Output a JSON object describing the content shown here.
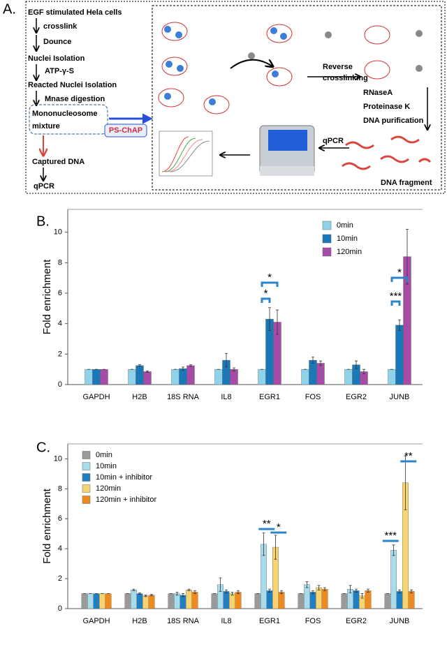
{
  "diagram": {
    "label": "A.",
    "steps": [
      "EGF stimulated Hela cells",
      "crosslink",
      "Dounce",
      "Nuclei Isolation",
      "ATP-γ-S",
      "Reacted Nuclei Isolation",
      "Mnase digestion"
    ],
    "mixture": [
      "Mononucleosome",
      "mixture"
    ],
    "captured": "Captured DNA",
    "qpcr_left": "qPCR",
    "method": "PS-ChAP",
    "reverse": [
      "Reverse",
      "crosslinking"
    ],
    "purification": [
      "RNaseA",
      "Proteinase K",
      "DNA purification"
    ],
    "qpcr_right": "qPCR",
    "fragment": "DNA fragment"
  },
  "chart_data": [
    {
      "type": "bar",
      "label": "B.",
      "ylabel": "Fold enrichment",
      "categories": [
        "GAPDH",
        "H2B",
        "18S RNA",
        "IL8",
        "EGR1",
        "FOS",
        "EGR2",
        "JUNB"
      ],
      "series": [
        {
          "name": "0min",
          "color": "#8fd3ea",
          "values": [
            1,
            1,
            1,
            1,
            1,
            1,
            1,
            1
          ],
          "errors": [
            0,
            0,
            0,
            0,
            0,
            0,
            0,
            0
          ]
        },
        {
          "name": "10min",
          "color": "#1a78b8",
          "values": [
            1,
            1.25,
            1.05,
            1.6,
            4.3,
            1.6,
            1.3,
            3.9
          ],
          "errors": [
            0,
            0.05,
            0.1,
            0.45,
            0.75,
            0.2,
            0.25,
            0.35
          ]
        },
        {
          "name": "120min",
          "color": "#a64ca6",
          "values": [
            1,
            0.85,
            1.25,
            1.0,
            4.1,
            1.4,
            0.85,
            8.4
          ],
          "errors": [
            0,
            0.05,
            0.05,
            0.1,
            0.8,
            0.15,
            0.15,
            1.8
          ]
        }
      ],
      "ylim": [
        0,
        11.5
      ],
      "yticks": [
        0,
        2,
        4,
        6,
        8,
        10
      ],
      "annotations": [
        "*",
        "*",
        "***",
        "*"
      ]
    },
    {
      "type": "bar",
      "label": "C.",
      "ylabel": "Fold enrichment",
      "categories": [
        "GAPDH",
        "H2B",
        "18S RNA",
        "IL8",
        "EGR1",
        "FOS",
        "EGR2",
        "JUNB"
      ],
      "series": [
        {
          "name": "0min",
          "color": "#9a9a9a",
          "values": [
            1,
            1,
            1,
            1,
            1,
            1,
            1,
            1
          ],
          "errors": [
            0,
            0,
            0,
            0,
            0,
            0,
            0,
            0
          ]
        },
        {
          "name": "10min",
          "color": "#a8dcec",
          "values": [
            1,
            1.25,
            1.0,
            1.6,
            4.3,
            1.6,
            1.3,
            3.9
          ],
          "errors": [
            0,
            0.05,
            0.1,
            0.45,
            0.75,
            0.2,
            0.25,
            0.35
          ]
        },
        {
          "name": "10min + inhibitor",
          "color": "#1f7fc0",
          "values": [
            1,
            1.0,
            0.9,
            1.15,
            1.2,
            1.1,
            1.2,
            1.15
          ],
          "errors": [
            0,
            0.05,
            0.1,
            0.1,
            0.1,
            0.1,
            0.1,
            0.1
          ]
        },
        {
          "name": "120min",
          "color": "#f7d472",
          "values": [
            1,
            0.85,
            1.25,
            1.0,
            4.1,
            1.4,
            0.85,
            8.4
          ],
          "errors": [
            0,
            0.05,
            0.05,
            0.1,
            0.8,
            0.15,
            0.15,
            1.8
          ]
        },
        {
          "name": "120min + inhibitor",
          "color": "#f08a1e",
          "values": [
            1,
            0.9,
            1.1,
            1.1,
            1.1,
            1.3,
            1.2,
            1.15
          ],
          "errors": [
            0,
            0.05,
            0.1,
            0.1,
            0.1,
            0.1,
            0.1,
            0.1
          ]
        }
      ],
      "ylim": [
        0,
        11
      ],
      "yticks": [
        0,
        2,
        4,
        6,
        8,
        10
      ],
      "annotations": [
        "**",
        "*",
        "***",
        "**"
      ]
    }
  ]
}
